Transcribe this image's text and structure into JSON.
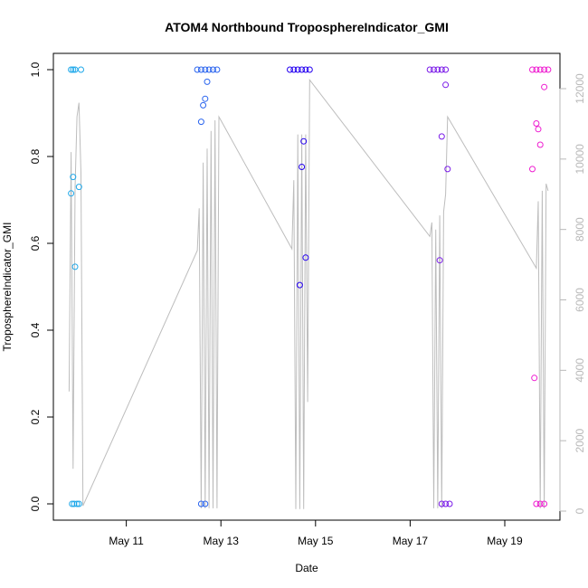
{
  "chart_data": {
    "type": "scatter",
    "title": "ATOM4 Northbound TroposphereIndicator_GMI",
    "xlabel": "Date",
    "ylabel": "TroposphereIndicator_GMI",
    "x_unit": "day",
    "xlim": [
      "2016-05-09 11:00",
      "2016-05-20 04:00"
    ],
    "ylim": [
      0,
      1.05
    ],
    "y_ticks": [
      0.0,
      0.2,
      0.4,
      0.6,
      0.8,
      1.0
    ],
    "y_tick_labels": [
      "0.0",
      "0.2",
      "0.4",
      "0.6",
      "0.8",
      "1.0"
    ],
    "x_ticks": [
      "2016-05-11",
      "2016-05-13",
      "2016-05-15",
      "2016-05-17",
      "2016-05-19"
    ],
    "x_tick_labels": [
      "May 11",
      "May 13",
      "May 15",
      "May 17",
      "May 19"
    ],
    "y2lim": [
      -300,
      12900
    ],
    "y2_ticks": [
      0,
      2000,
      4000,
      6000,
      8000,
      10000,
      12000
    ],
    "y2_tick_labels": [
      "0",
      "2000",
      "4000",
      "6000",
      "8000",
      "10000",
      "12000"
    ],
    "grid": false,
    "legend": "none",
    "colors": {
      "flight1": "#1fa8ea",
      "flight2": "#2a64ee",
      "flight3": "#2400f0",
      "flight4": "#7a1ae8",
      "flight5": "#ee1cd0",
      "altitude_line": "#bdbdbd"
    },
    "series": [
      {
        "color": "#1fa8ea",
        "points": [
          [
            "2016-05-09 20:00",
            1.0
          ],
          [
            "2016-05-09 21:00",
            1.0
          ],
          [
            "2016-05-09 22:00",
            1.0
          ],
          [
            "2016-05-10 01:00",
            1.0
          ],
          [
            "2016-05-09 20:00",
            0.715
          ],
          [
            "2016-05-09 21:00",
            0.753
          ],
          [
            "2016-05-09 22:00",
            0.546
          ],
          [
            "2016-05-10 00:00",
            0.73
          ],
          [
            "2016-05-09 20:30",
            0.0
          ],
          [
            "2016-05-09 21:30",
            0.0
          ],
          [
            "2016-05-09 23:00",
            0.0
          ],
          [
            "2016-05-10 00:00",
            0.0
          ]
        ]
      },
      {
        "color": "#2a64ee",
        "points": [
          [
            "2016-05-12 12:00",
            1.0
          ],
          [
            "2016-05-12 14:00",
            1.0
          ],
          [
            "2016-05-12 16:00",
            1.0
          ],
          [
            "2016-05-12 18:00",
            1.0
          ],
          [
            "2016-05-12 20:00",
            1.0
          ],
          [
            "2016-05-12 22:00",
            1.0
          ],
          [
            "2016-05-12 14:00",
            0.88
          ],
          [
            "2016-05-12 15:00",
            0.918
          ],
          [
            "2016-05-12 16:00",
            0.933
          ],
          [
            "2016-05-12 17:00",
            0.972
          ],
          [
            "2016-05-12 14:00",
            0.0
          ],
          [
            "2016-05-12 16:00",
            0.0
          ]
        ]
      },
      {
        "color": "#2400f0",
        "points": [
          [
            "2016-05-14 11:00",
            1.0
          ],
          [
            "2016-05-14 13:00",
            1.0
          ],
          [
            "2016-05-14 15:00",
            1.0
          ],
          [
            "2016-05-14 17:00",
            1.0
          ],
          [
            "2016-05-14 19:00",
            1.0
          ],
          [
            "2016-05-14 21:00",
            1.0
          ],
          [
            "2016-05-14 18:00",
            0.835
          ],
          [
            "2016-05-14 17:00",
            0.776
          ],
          [
            "2016-05-14 19:00",
            0.567
          ],
          [
            "2016-05-14 16:00",
            0.504
          ]
        ]
      },
      {
        "color": "#7a1ae8",
        "points": [
          [
            "2016-05-17 10:00",
            1.0
          ],
          [
            "2016-05-17 12:00",
            1.0
          ],
          [
            "2016-05-17 14:00",
            1.0
          ],
          [
            "2016-05-17 16:00",
            1.0
          ],
          [
            "2016-05-17 18:00",
            1.0
          ],
          [
            "2016-05-17 16:00",
            0.846
          ],
          [
            "2016-05-17 18:00",
            0.965
          ],
          [
            "2016-05-17 19:00",
            0.771
          ],
          [
            "2016-05-17 15:00",
            0.561
          ],
          [
            "2016-05-17 16:00",
            0.0
          ],
          [
            "2016-05-17 18:00",
            0.0
          ],
          [
            "2016-05-17 20:00",
            0.0
          ]
        ]
      },
      {
        "color": "#ee1cd0",
        "points": [
          [
            "2016-05-19 14:00",
            1.0
          ],
          [
            "2016-05-19 16:00",
            1.0
          ],
          [
            "2016-05-19 18:00",
            1.0
          ],
          [
            "2016-05-19 20:00",
            1.0
          ],
          [
            "2016-05-19 22:00",
            1.0
          ],
          [
            "2016-05-19 16:00",
            0.876
          ],
          [
            "2016-05-19 17:00",
            0.863
          ],
          [
            "2016-05-19 18:00",
            0.827
          ],
          [
            "2016-05-19 20:00",
            0.96
          ],
          [
            "2016-05-19 14:00",
            0.771
          ],
          [
            "2016-05-19 15:00",
            0.29
          ],
          [
            "2016-05-19 16:00",
            0.0
          ],
          [
            "2016-05-19 18:00",
            0.0
          ],
          [
            "2016-05-19 20:00",
            0.0
          ]
        ]
      }
    ],
    "altitude_series": {
      "axis": "right",
      "points": [
        [
          "2016-05-09 19:00",
          3400
        ],
        [
          "2016-05-09 20:00",
          10200
        ],
        [
          "2016-05-09 21:00",
          1200
        ],
        [
          "2016-05-09 22:00",
          9200
        ],
        [
          "2016-05-09 23:00",
          11200
        ],
        [
          "2016-05-10 00:00",
          11600
        ],
        [
          "2016-05-10 01:00",
          9600
        ],
        [
          "2016-05-10 02:00",
          150
        ],
        [
          "2016-05-12 12:00",
          7400
        ],
        [
          "2016-05-12 13:00",
          8600
        ],
        [
          "2016-05-12 14:00",
          80
        ],
        [
          "2016-05-12 15:00",
          9900
        ],
        [
          "2016-05-12 16:00",
          80
        ],
        [
          "2016-05-12 17:00",
          10300
        ],
        [
          "2016-05-12 18:00",
          80
        ],
        [
          "2016-05-12 19:00",
          10800
        ],
        [
          "2016-05-12 20:00",
          80
        ],
        [
          "2016-05-12 21:00",
          11100
        ],
        [
          "2016-05-12 22:00",
          80
        ],
        [
          "2016-05-12 23:00",
          11200
        ],
        [
          "2016-05-13 00:00",
          11100
        ],
        [
          "2016-05-14 12:00",
          7450
        ],
        [
          "2016-05-14 13:00",
          9400
        ],
        [
          "2016-05-14 14:00",
          60
        ],
        [
          "2016-05-14 15:00",
          10700
        ],
        [
          "2016-05-14 16:00",
          60
        ],
        [
          "2016-05-14 17:00",
          10700
        ],
        [
          "2016-05-14 18:00",
          60
        ],
        [
          "2016-05-14 19:00",
          10700
        ],
        [
          "2016-05-14 20:00",
          3100
        ],
        [
          "2016-05-14 21:00",
          12250
        ],
        [
          "2016-05-17 10:00",
          7800
        ],
        [
          "2016-05-17 11:00",
          8200
        ],
        [
          "2016-05-17 12:00",
          80
        ],
        [
          "2016-05-17 13:00",
          8000
        ],
        [
          "2016-05-17 14:00",
          80
        ],
        [
          "2016-05-17 15:00",
          8400
        ],
        [
          "2016-05-17 16:00",
          80
        ],
        [
          "2016-05-17 17:00",
          8500
        ],
        [
          "2016-05-17 18:00",
          9000
        ],
        [
          "2016-05-17 19:00",
          11200
        ],
        [
          "2016-05-19 16:00",
          6900
        ],
        [
          "2016-05-19 17:00",
          8800
        ],
        [
          "2016-05-19 18:00",
          80
        ],
        [
          "2016-05-19 19:00",
          9100
        ],
        [
          "2016-05-19 20:00",
          80
        ],
        [
          "2016-05-19 21:00",
          9300
        ],
        [
          "2016-05-19 22:00",
          9100
        ]
      ]
    }
  }
}
